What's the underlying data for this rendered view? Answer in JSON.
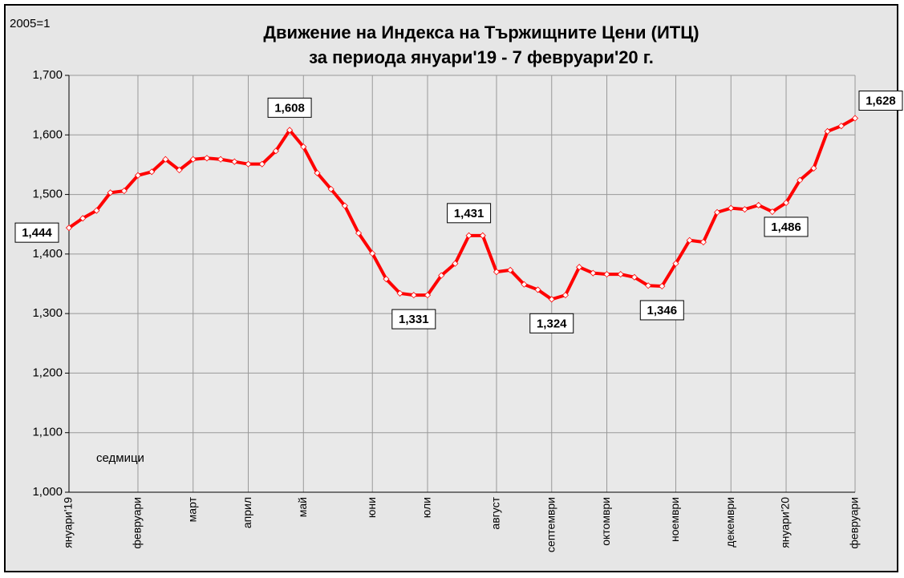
{
  "chart_data": {
    "type": "line",
    "title": "Движение на Индекса на Тържищните Цени (ИТЦ)",
    "subtitle": "за периода януари'19 - 7 февруари'20 г.",
    "annotations": [
      "2005=1",
      "седмици"
    ],
    "categories": [
      "януари'19",
      null,
      null,
      null,
      null,
      "февруари",
      null,
      null,
      null,
      "март",
      null,
      null,
      null,
      "април",
      null,
      null,
      null,
      "май",
      null,
      null,
      null,
      null,
      "юни",
      null,
      null,
      null,
      "юли",
      null,
      null,
      null,
      null,
      "август",
      null,
      null,
      null,
      "септември",
      null,
      null,
      null,
      "октомври",
      null,
      null,
      null,
      null,
      "ноември",
      null,
      null,
      null,
      "декември",
      null,
      null,
      null,
      "януари'20",
      null,
      null,
      null,
      null,
      "февруари"
    ],
    "series": [
      {
        "name": "ИТЦ",
        "color": "#ff0000",
        "values": [
          1444,
          1460,
          1473,
          1503,
          1506,
          1532,
          1538,
          1559,
          1541,
          1559,
          1561,
          1559,
          1555,
          1551,
          1551,
          1573,
          1608,
          1580,
          1536,
          1509,
          1481,
          1435,
          1401,
          1358,
          1334,
          1331,
          1331,
          1364,
          1384,
          1431,
          1431,
          1370,
          1373,
          1349,
          1340,
          1324,
          1331,
          1378,
          1368,
          1366,
          1366,
          1361,
          1347,
          1346,
          1384,
          1423,
          1420,
          1470,
          1477,
          1475,
          1482,
          1471,
          1486,
          1524,
          1544,
          1606,
          1615,
          1628
        ],
        "value_labels": [
          "1,444",
          null,
          null,
          null,
          null,
          null,
          null,
          null,
          null,
          null,
          null,
          null,
          null,
          null,
          null,
          null,
          "1,608",
          null,
          null,
          null,
          null,
          null,
          null,
          null,
          null,
          "1,331",
          null,
          null,
          null,
          "1,431",
          null,
          null,
          null,
          null,
          null,
          "1,324",
          null,
          null,
          null,
          null,
          null,
          null,
          null,
          "1,346",
          null,
          null,
          null,
          null,
          null,
          null,
          null,
          null,
          "1,486",
          null,
          null,
          null,
          null,
          "1,628"
        ]
      }
    ],
    "ylim": [
      1000,
      1700
    ],
    "yticks": [
      {
        "value": 1000,
        "label": "1,000"
      },
      {
        "value": 1100,
        "label": "1,100"
      },
      {
        "value": 1200,
        "label": "1,200"
      },
      {
        "value": 1300,
        "label": "1,300"
      },
      {
        "value": 1400,
        "label": "1,400"
      },
      {
        "value": 1500,
        "label": "1,500"
      },
      {
        "value": 1600,
        "label": "1,600"
      },
      {
        "value": 1700,
        "label": "1,700"
      }
    ],
    "grid": true
  }
}
